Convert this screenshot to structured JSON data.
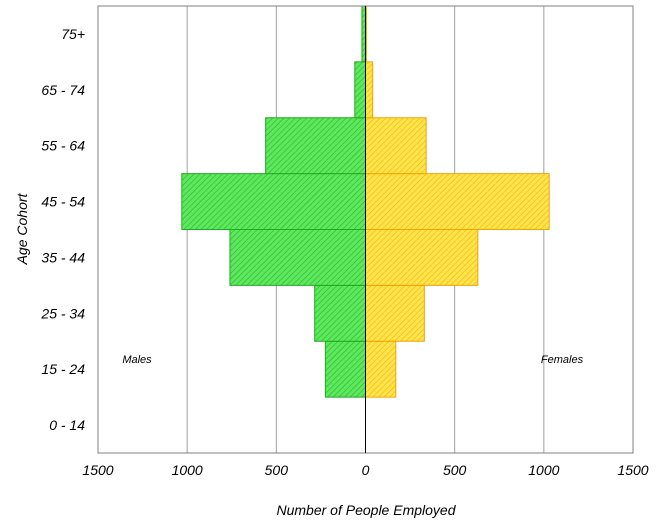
{
  "chart_data": {
    "type": "bar",
    "orientation": "horizontal",
    "subtype": "population-pyramid",
    "xlabel": "Number of People Employed",
    "ylabel": "Age Cohort",
    "xlim": [
      -1500,
      1500
    ],
    "x_ticks": [
      -1500,
      -1000,
      -500,
      0,
      500,
      1000,
      1500
    ],
    "x_tick_labels": [
      "1500",
      "1000",
      "500",
      "0",
      "500",
      "1000",
      "1500"
    ],
    "categories": [
      "0 - 14",
      "15 - 24",
      "25 - 34",
      "35 - 44",
      "45 - 54",
      "55 - 64",
      "65 - 74",
      "75+"
    ],
    "series": [
      {
        "name": "Males",
        "values": [
          0,
          225,
          285,
          760,
          1030,
          560,
          60,
          20
        ],
        "color": "#33dd33",
        "border": "#22aa22"
      },
      {
        "name": "Females",
        "values": [
          0,
          170,
          330,
          630,
          1030,
          340,
          40,
          5
        ],
        "color": "#ffe033",
        "border": "#f5a300"
      }
    ],
    "grid": "vertical",
    "legend": "in-plot labels (Males left, Females right)"
  }
}
